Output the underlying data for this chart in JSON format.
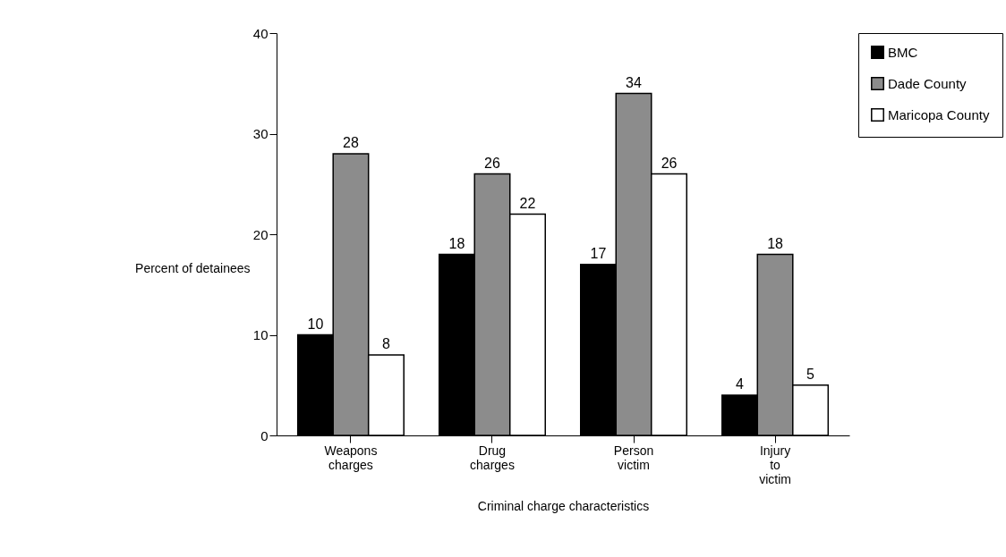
{
  "chart_data": {
    "type": "bar",
    "xlabel": "Criminal charge characteristics",
    "ylabel": "Percent of detainees",
    "categories": [
      "Weapons charges",
      "Drug charges",
      "Person victim",
      "Injury to victim"
    ],
    "series": [
      {
        "name": "BMC",
        "color": "#000000",
        "values": [
          10,
          18,
          17,
          4
        ]
      },
      {
        "name": "Dade County",
        "color": "#8c8c8c",
        "values": [
          28,
          26,
          34,
          18
        ]
      },
      {
        "name": "Maricopa County",
        "color": "#ffffff",
        "values": [
          8,
          22,
          26,
          5
        ]
      }
    ],
    "ylim": [
      0,
      40
    ],
    "yticks": [
      0,
      10,
      20,
      30,
      40
    ],
    "grid": false,
    "legend": "right",
    "data_labels": true
  }
}
